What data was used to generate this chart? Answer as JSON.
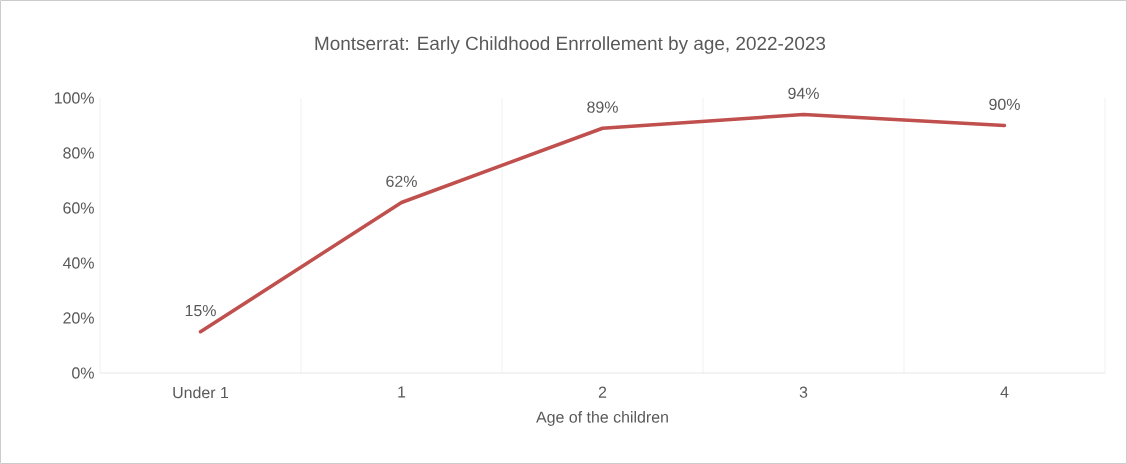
{
  "chart_data": {
    "type": "line",
    "title": "Montserrat: Early Childhood Enrrollement  by age, 2022-2023",
    "xlabel": "Age of the children",
    "categories": [
      "Under 1",
      "1",
      "2",
      "3",
      "4"
    ],
    "series": [
      {
        "color": "#c0504d",
        "values": [
          15,
          62,
          89,
          94,
          90
        ],
        "value_labels": [
          "15%",
          "62%",
          "89%",
          "94%",
          "90%"
        ]
      }
    ],
    "ylim": [
      0,
      100
    ],
    "yticks": [
      {
        "value": 0,
        "label": "0%"
      },
      {
        "value": 20,
        "label": "20%"
      },
      {
        "value": 40,
        "label": "40%"
      },
      {
        "value": 60,
        "label": "60%"
      },
      {
        "value": 80,
        "label": "80%"
      },
      {
        "value": 100,
        "label": "100%"
      }
    ],
    "grid": true,
    "marker": "none",
    "line_style": "solid"
  }
}
